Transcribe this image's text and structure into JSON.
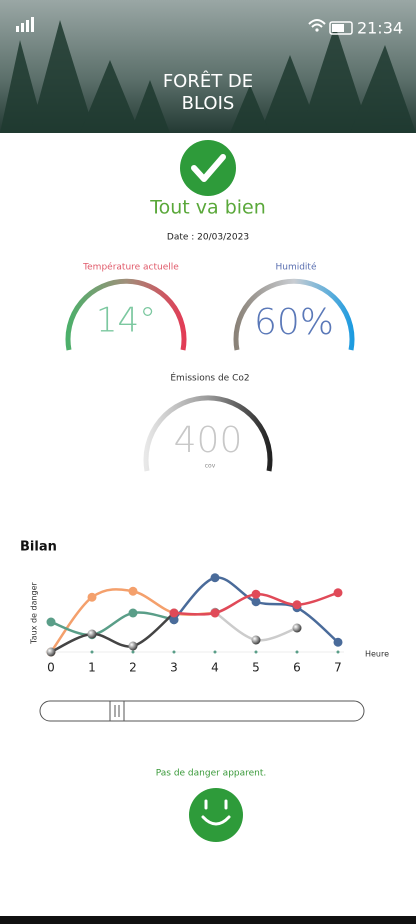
{
  "status_bar": {
    "time": "21:34"
  },
  "header": {
    "title_lines": [
      "FORÊT DE",
      "BLOIS"
    ]
  },
  "status": {
    "message": "Tout va bien",
    "date": "Date : 20/03/2023"
  },
  "gauges": [
    {
      "label": "Température actuelle",
      "value": "14°"
    },
    {
      "label": "Humidité",
      "value": "60%"
    },
    {
      "label": "Émissions de Co2",
      "value": "400",
      "unit": "cov"
    }
  ],
  "chart_data": {
    "type": "line",
    "title": "Bilan",
    "ylabel": "Taux de danger",
    "xlabel": "Heure",
    "x": [
      0,
      1,
      2,
      3,
      4,
      5,
      6,
      7
    ],
    "xlim": [
      0,
      7
    ],
    "xticks": [
      0,
      1,
      2,
      3,
      4,
      5,
      6,
      7
    ],
    "ylim": [
      0,
      10
    ],
    "series": [
      {
        "name": "orange",
        "color": "#f4a06c",
        "values": [
          0,
          7.3,
          8.1,
          5.2,
          5.2,
          null,
          null,
          null
        ]
      },
      {
        "name": "green",
        "color": "#5a9e88",
        "values": [
          4,
          2.3,
          5.2,
          4.3,
          null,
          null,
          null,
          null
        ]
      },
      {
        "name": "dark",
        "color": "#444444",
        "values": [
          0,
          2.4,
          0.8,
          5.2,
          null,
          null,
          null,
          null
        ]
      },
      {
        "name": "grey",
        "color": "#cccccc",
        "values": [
          null,
          null,
          null,
          null,
          5.3,
          1.6,
          3.2,
          null
        ]
      },
      {
        "name": "blue",
        "color": "#4a6b9a",
        "values": [
          null,
          null,
          null,
          4.3,
          9.9,
          6.7,
          5.9,
          1.3
        ]
      },
      {
        "name": "red",
        "color": "#e04a58",
        "values": [
          null,
          null,
          null,
          5.2,
          5.2,
          7.7,
          6.3,
          7.9
        ]
      }
    ]
  },
  "footer": {
    "message": "Pas de danger apparent."
  }
}
